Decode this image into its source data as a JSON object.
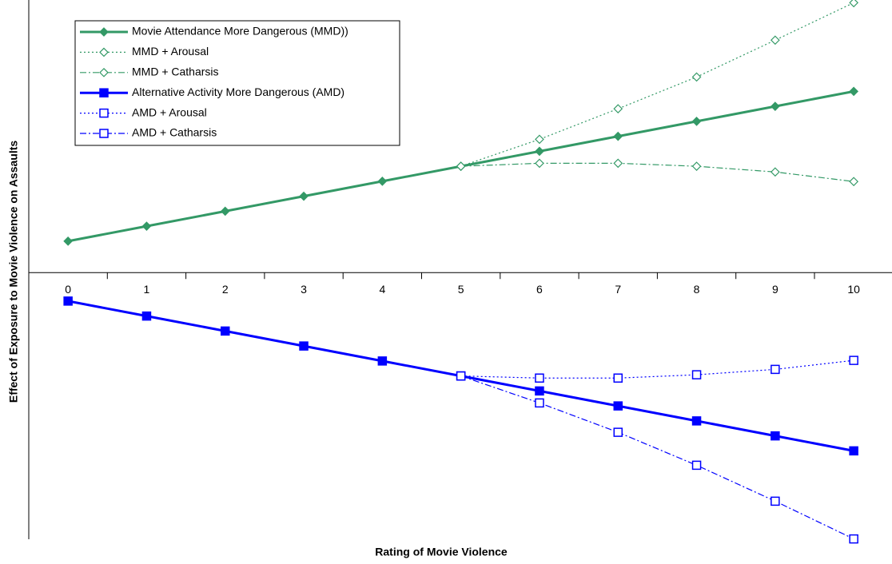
{
  "chart_data": {
    "type": "line",
    "x_label": "Rating of Movie Violence",
    "y_label": "Effect of Exposure to Movie Violence on Assaults",
    "categories": [
      "0",
      "1",
      "2",
      "3",
      "4",
      "5",
      "6",
      "7",
      "8",
      "9",
      "10"
    ],
    "ylim": [
      -8.9,
      9.1
    ],
    "legend": "upper left",
    "series": [
      {
        "name": "Movie Attendance More Dangerous (MMD))",
        "color": "#339966",
        "line_style": "solid",
        "marker": "diamond",
        "marker_fill": true,
        "values": [
          1.05,
          1.55,
          2.05,
          2.55,
          3.05,
          3.55,
          4.05,
          4.55,
          5.05,
          5.55,
          6.05
        ]
      },
      {
        "name": "MMD + Arousal",
        "color": "#339966",
        "line_style": "dotted",
        "marker": "diamond",
        "marker_fill": false,
        "values": [
          null,
          null,
          null,
          null,
          null,
          3.55,
          4.45,
          5.47,
          6.53,
          7.76,
          9.01
        ]
      },
      {
        "name": "MMD + Catharsis",
        "color": "#339966",
        "line_style": "dashdot",
        "marker": "diamond",
        "marker_fill": false,
        "values": [
          null,
          null,
          null,
          null,
          null,
          3.55,
          3.65,
          3.65,
          3.55,
          3.36,
          3.04
        ]
      },
      {
        "name": "Alternative Activity More Dangerous (AMD)",
        "color": "#0000ff",
        "line_style": "solid",
        "marker": "square",
        "marker_fill": true,
        "values": [
          -0.95,
          -1.45,
          -1.95,
          -2.45,
          -2.95,
          -3.45,
          -3.95,
          -4.45,
          -4.95,
          -5.45,
          -5.95
        ]
      },
      {
        "name": "AMD + Arousal",
        "color": "#0000ff",
        "line_style": "dotted",
        "marker": "square",
        "marker_fill": false,
        "values": [
          null,
          null,
          null,
          null,
          null,
          -3.45,
          -3.52,
          -3.52,
          -3.41,
          -3.23,
          -2.93
        ]
      },
      {
        "name": "AMD + Catharsis",
        "color": "#0000ff",
        "line_style": "dashdot",
        "marker": "square",
        "marker_fill": false,
        "values": [
          null,
          null,
          null,
          null,
          null,
          -3.45,
          -4.35,
          -5.33,
          -6.43,
          -7.63,
          -8.89
        ]
      }
    ]
  }
}
